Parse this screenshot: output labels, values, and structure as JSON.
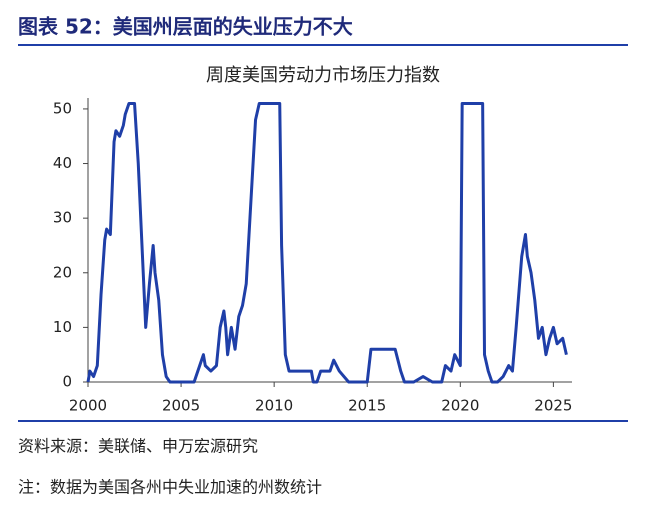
{
  "header": {
    "title": "图表 52：美国州层面的失业压力不大"
  },
  "chart_data": {
    "type": "line",
    "title": "周度美国劳动力市场压力指数",
    "x": [
      2000.0,
      2000.1,
      2000.3,
      2000.5,
      2000.7,
      2000.9,
      2001.0,
      2001.2,
      2001.4,
      2001.5,
      2001.7,
      2001.9,
      2002.0,
      2002.2,
      2002.4,
      2002.5,
      2002.7,
      2002.9,
      2003.1,
      2003.3,
      2003.5,
      2003.6,
      2003.8,
      2004.0,
      2004.2,
      2004.4,
      2005.0,
      2005.7,
      2006.0,
      2006.2,
      2006.3,
      2006.6,
      2006.9,
      2007.1,
      2007.3,
      2007.4,
      2007.5,
      2007.7,
      2007.9,
      2008.1,
      2008.3,
      2008.5,
      2008.7,
      2008.9,
      2009.0,
      2009.2,
      2010.0,
      2010.3,
      2010.4,
      2010.6,
      2010.8,
      2011.5,
      2012.0,
      2012.1,
      2012.3,
      2012.5,
      2013.0,
      2013.2,
      2013.5,
      2014.0,
      2014.2,
      2014.5,
      2014.8,
      2015.0,
      2015.2,
      2015.5,
      2016.0,
      2016.5,
      2016.8,
      2017.0,
      2017.5,
      2018.0,
      2018.5,
      2019.0,
      2019.2,
      2019.5,
      2019.7,
      2020.0,
      2020.1,
      2021.0,
      2021.2,
      2021.3,
      2021.5,
      2021.7,
      2022.0,
      2022.3,
      2022.6,
      2022.8,
      2023.0,
      2023.3,
      2023.5,
      2023.6,
      2023.8,
      2024.0,
      2024.2,
      2024.4,
      2024.6,
      2024.8,
      2025.0,
      2025.2,
      2025.5,
      2025.7
    ],
    "series": [
      {
        "name": "周度美国劳动力市场压力指数",
        "color": "#1f3fa8",
        "values": [
          0,
          2,
          1,
          3,
          16,
          26,
          28,
          27,
          44,
          46,
          45,
          47,
          49,
          51,
          51,
          51,
          40,
          25,
          10,
          18,
          25,
          20,
          15,
          5,
          1,
          0,
          0,
          0,
          3,
          5,
          3,
          2,
          3,
          10,
          13,
          10,
          5,
          10,
          6,
          12,
          14,
          18,
          30,
          42,
          48,
          51,
          51,
          51,
          25,
          5,
          2,
          2,
          2,
          0,
          0,
          2,
          2,
          4,
          2,
          0,
          0,
          0,
          0,
          0,
          6,
          6,
          6,
          6,
          2,
          0,
          0,
          1,
          0,
          0,
          3,
          2,
          5,
          3,
          51,
          51,
          51,
          5,
          2,
          0,
          0,
          1,
          3,
          2,
          10,
          23,
          27,
          23,
          20,
          15,
          8,
          10,
          5,
          8,
          10,
          7,
          8,
          5
        ]
      }
    ],
    "xlim": [
      2000,
      2026
    ],
    "ylim": [
      0,
      52
    ],
    "xticks": [
      2000,
      2005,
      2010,
      2015,
      2020,
      2025
    ],
    "yticks": [
      0,
      10,
      20,
      30,
      40,
      50
    ]
  },
  "source": "资料来源：美联储、申万宏源研究",
  "note": "注：数据为美国各州中失业加速的州数统计"
}
